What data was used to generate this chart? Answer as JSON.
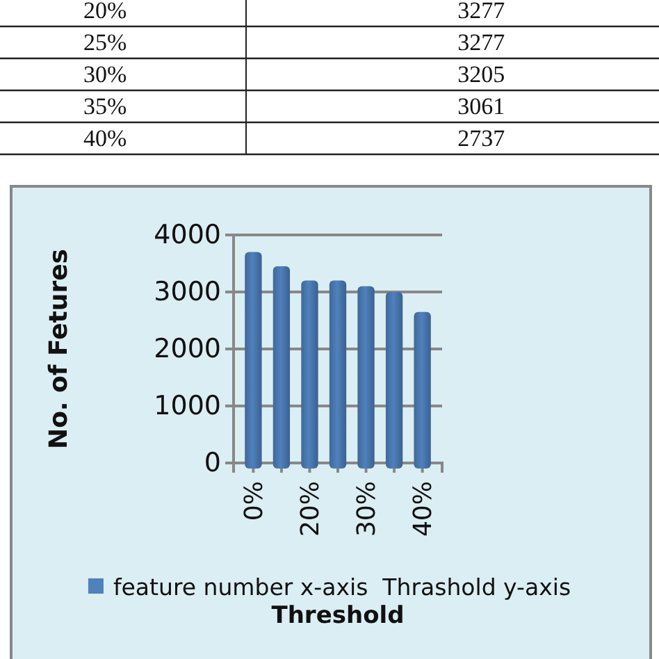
{
  "chart_data": [
    {
      "type": "other",
      "annotations": [
        "20%",
        "3277",
        "25%",
        "3277",
        "30%",
        "3205",
        "35%",
        "3061",
        "40%",
        "2737"
      ]
    },
    {
      "type": "bar",
      "ylabel": "No. of Fetures",
      "xlabel": "Threshold",
      "categories": [
        "0%",
        null,
        "20%",
        null,
        "30%",
        null,
        "40%"
      ],
      "series": [
        {
          "name": "feature number x-axis  Thrashold y-axis",
          "color": "#4f81bd",
          "values": [
            3700,
            3450,
            3200,
            3200,
            3100,
            3000,
            2650
          ]
        }
      ],
      "ylim": [
        0,
        4000
      ],
      "yticks": [
        0,
        1000,
        2000,
        3000,
        4000
      ],
      "grid": "y",
      "legend": "bottom"
    }
  ]
}
